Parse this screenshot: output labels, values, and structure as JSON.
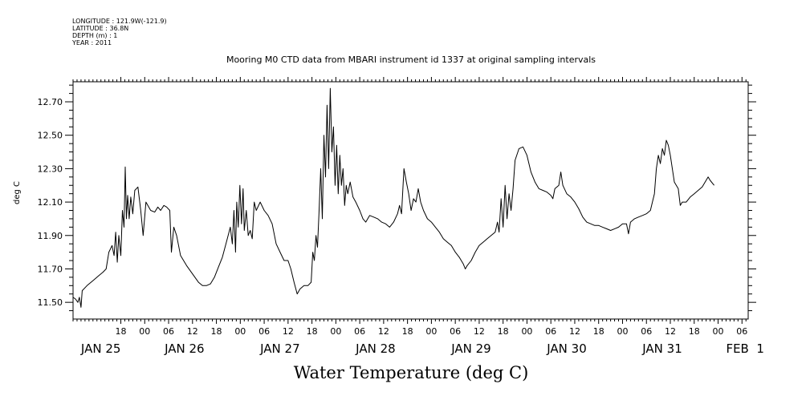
{
  "header": {
    "longitude": "LONGITUDE : 121.9W(-121.9)",
    "latitude": "LATITUDE : 36.8N",
    "depth": "DEPTH (m) : 1",
    "year": "YEAR : 2011"
  },
  "chart_data": {
    "type": "line",
    "title": "Mooring M0 CTD data from MBARI instrument id 1337 at original sampling intervals",
    "ylabel": "deg C",
    "xlabel": "Water Temperature (deg C)",
    "ylim": [
      11.4,
      12.82
    ],
    "xlim_hours": [
      0,
      166
    ],
    "y_ticks": [
      "11.50",
      "11.70",
      "11.90",
      "12.10",
      "12.30",
      "12.50",
      "12.70"
    ],
    "hour_ticks": [
      {
        "label": "18",
        "h": 12
      },
      {
        "label": "00",
        "h": 18
      },
      {
        "label": "06",
        "h": 24
      },
      {
        "label": "12",
        "h": 30
      },
      {
        "label": "18",
        "h": 36
      },
      {
        "label": "00",
        "h": 42
      },
      {
        "label": "06",
        "h": 48
      },
      {
        "label": "12",
        "h": 54
      },
      {
        "label": "18",
        "h": 60
      },
      {
        "label": "00",
        "h": 66
      },
      {
        "label": "06",
        "h": 72
      },
      {
        "label": "12",
        "h": 78
      },
      {
        "label": "18",
        "h": 84
      },
      {
        "label": "00",
        "h": 90
      },
      {
        "label": "06",
        "h": 96
      },
      {
        "label": "12",
        "h": 102
      },
      {
        "label": "18",
        "h": 108
      },
      {
        "label": "00",
        "h": 114
      },
      {
        "label": "06",
        "h": 120
      },
      {
        "label": "12",
        "h": 126
      },
      {
        "label": "18",
        "h": 132
      },
      {
        "label": "00",
        "h": 138
      },
      {
        "label": "06",
        "h": 144
      },
      {
        "label": "12",
        "h": 150
      },
      {
        "label": "18",
        "h": 156
      },
      {
        "label": "00",
        "h": 162
      },
      {
        "label": "06",
        "h": 168
      },
      {
        "label": "12",
        "h": 174
      }
    ],
    "date_labels": [
      {
        "label": "JAN 25",
        "h": 2
      },
      {
        "label": "JAN 26",
        "h": 23
      },
      {
        "label": "JAN 27",
        "h": 47
      },
      {
        "label": "JAN 28",
        "h": 71
      },
      {
        "label": "JAN 29",
        "h": 95
      },
      {
        "label": "JAN 30",
        "h": 119
      },
      {
        "label": "JAN 31",
        "h": 143
      },
      {
        "label": "FEB  1",
        "h": 164
      }
    ],
    "series": [
      {
        "color": "#000000",
        "points": [
          [
            0.0,
            11.53
          ],
          [
            0.6,
            11.52
          ],
          [
            1.2,
            11.5
          ],
          [
            1.6,
            11.53
          ],
          [
            2.0,
            11.47
          ],
          [
            2.3,
            11.57
          ],
          [
            3.5,
            11.6
          ],
          [
            5.0,
            11.63
          ],
          [
            6.5,
            11.66
          ],
          [
            7.5,
            11.68
          ],
          [
            8.3,
            11.7
          ],
          [
            9.0,
            11.8
          ],
          [
            9.8,
            11.84
          ],
          [
            10.3,
            11.78
          ],
          [
            10.7,
            11.92
          ],
          [
            11.1,
            11.74
          ],
          [
            11.5,
            11.9
          ],
          [
            12.0,
            11.78
          ],
          [
            12.4,
            12.05
          ],
          [
            12.8,
            11.95
          ],
          [
            13.1,
            12.31
          ],
          [
            13.4,
            12.0
          ],
          [
            13.7,
            12.14
          ],
          [
            14.1,
            12.0
          ],
          [
            14.5,
            12.13
          ],
          [
            15.0,
            12.03
          ],
          [
            15.5,
            12.17
          ],
          [
            16.3,
            12.19
          ],
          [
            17.0,
            12.05
          ],
          [
            17.6,
            11.9
          ],
          [
            18.3,
            12.1
          ],
          [
            19.5,
            12.05
          ],
          [
            20.5,
            12.04
          ],
          [
            21.3,
            12.07
          ],
          [
            22.0,
            12.05
          ],
          [
            22.8,
            12.08
          ],
          [
            23.5,
            12.07
          ],
          [
            24.3,
            12.05
          ],
          [
            24.7,
            11.8
          ],
          [
            25.3,
            11.95
          ],
          [
            26.0,
            11.9
          ],
          [
            27.0,
            11.78
          ],
          [
            28.5,
            11.72
          ],
          [
            30.0,
            11.67
          ],
          [
            31.5,
            11.62
          ],
          [
            32.5,
            11.6
          ],
          [
            33.5,
            11.6
          ],
          [
            34.5,
            11.61
          ],
          [
            35.5,
            11.65
          ],
          [
            36.5,
            11.71
          ],
          [
            37.5,
            11.77
          ],
          [
            38.5,
            11.86
          ],
          [
            39.5,
            11.95
          ],
          [
            40.0,
            11.85
          ],
          [
            40.4,
            12.05
          ],
          [
            40.8,
            11.8
          ],
          [
            41.1,
            12.1
          ],
          [
            41.5,
            11.95
          ],
          [
            41.9,
            12.2
          ],
          [
            42.3,
            11.97
          ],
          [
            42.7,
            12.18
          ],
          [
            43.0,
            11.93
          ],
          [
            43.5,
            12.05
          ],
          [
            44.0,
            11.9
          ],
          [
            44.5,
            11.93
          ],
          [
            45.0,
            11.88
          ],
          [
            45.5,
            12.1
          ],
          [
            46.0,
            12.05
          ],
          [
            47.0,
            12.1
          ],
          [
            48.0,
            12.05
          ],
          [
            49.0,
            12.02
          ],
          [
            50.0,
            11.97
          ],
          [
            51.0,
            11.85
          ],
          [
            52.0,
            11.8
          ],
          [
            53.0,
            11.75
          ],
          [
            54.0,
            11.75
          ],
          [
            54.7,
            11.7
          ],
          [
            55.5,
            11.62
          ],
          [
            56.3,
            11.55
          ],
          [
            57.0,
            11.58
          ],
          [
            58.0,
            11.6
          ],
          [
            59.0,
            11.6
          ],
          [
            59.8,
            11.62
          ],
          [
            60.2,
            11.8
          ],
          [
            60.6,
            11.75
          ],
          [
            61.0,
            11.9
          ],
          [
            61.4,
            11.83
          ],
          [
            61.8,
            12.05
          ],
          [
            62.2,
            12.3
          ],
          [
            62.6,
            12.0
          ],
          [
            63.0,
            12.5
          ],
          [
            63.4,
            12.25
          ],
          [
            63.8,
            12.68
          ],
          [
            64.2,
            12.3
          ],
          [
            64.6,
            12.78
          ],
          [
            65.0,
            12.4
          ],
          [
            65.4,
            12.55
          ],
          [
            65.8,
            12.2
          ],
          [
            66.2,
            12.44
          ],
          [
            66.6,
            12.15
          ],
          [
            67.0,
            12.38
          ],
          [
            67.4,
            12.2
          ],
          [
            67.8,
            12.3
          ],
          [
            68.2,
            12.08
          ],
          [
            68.6,
            12.2
          ],
          [
            69.0,
            12.15
          ],
          [
            69.6,
            12.22
          ],
          [
            70.3,
            12.13
          ],
          [
            71.0,
            12.1
          ],
          [
            72.0,
            12.05
          ],
          [
            72.8,
            12.0
          ],
          [
            73.5,
            11.98
          ],
          [
            74.5,
            12.02
          ],
          [
            75.5,
            12.01
          ],
          [
            76.5,
            12.0
          ],
          [
            77.5,
            11.98
          ],
          [
            78.5,
            11.97
          ],
          [
            79.5,
            11.95
          ],
          [
            80.5,
            11.98
          ],
          [
            81.5,
            12.03
          ],
          [
            82.0,
            12.08
          ],
          [
            82.5,
            12.03
          ],
          [
            83.1,
            12.3
          ],
          [
            83.7,
            12.22
          ],
          [
            84.3,
            12.15
          ],
          [
            84.9,
            12.05
          ],
          [
            85.5,
            12.12
          ],
          [
            86.1,
            12.1
          ],
          [
            86.7,
            12.18
          ],
          [
            87.3,
            12.1
          ],
          [
            88.0,
            12.05
          ],
          [
            89.0,
            12.0
          ],
          [
            90.0,
            11.98
          ],
          [
            91.0,
            11.95
          ],
          [
            92.0,
            11.92
          ],
          [
            93.0,
            11.88
          ],
          [
            94.0,
            11.86
          ],
          [
            95.0,
            11.84
          ],
          [
            96.0,
            11.8
          ],
          [
            97.0,
            11.77
          ],
          [
            98.0,
            11.73
          ],
          [
            98.5,
            11.7
          ],
          [
            99.0,
            11.72
          ],
          [
            100.0,
            11.75
          ],
          [
            101.0,
            11.8
          ],
          [
            102.0,
            11.84
          ],
          [
            103.0,
            11.86
          ],
          [
            104.0,
            11.88
          ],
          [
            105.0,
            11.9
          ],
          [
            106.0,
            11.92
          ],
          [
            106.6,
            11.98
          ],
          [
            107.0,
            11.92
          ],
          [
            107.5,
            12.12
          ],
          [
            108.0,
            11.95
          ],
          [
            108.5,
            12.2
          ],
          [
            109.0,
            12.0
          ],
          [
            109.5,
            12.15
          ],
          [
            110.0,
            12.05
          ],
          [
            110.5,
            12.18
          ],
          [
            111.0,
            12.35
          ],
          [
            112.0,
            12.42
          ],
          [
            113.0,
            12.43
          ],
          [
            114.0,
            12.38
          ],
          [
            115.0,
            12.28
          ],
          [
            116.0,
            12.22
          ],
          [
            117.0,
            12.18
          ],
          [
            118.0,
            12.17
          ],
          [
            119.0,
            12.16
          ],
          [
            120.0,
            12.14
          ],
          [
            120.5,
            12.12
          ],
          [
            121.0,
            12.18
          ],
          [
            122.0,
            12.2
          ],
          [
            122.5,
            12.28
          ],
          [
            123.0,
            12.2
          ],
          [
            124.0,
            12.15
          ],
          [
            125.0,
            12.13
          ],
          [
            126.0,
            12.1
          ],
          [
            127.0,
            12.06
          ],
          [
            128.0,
            12.01
          ],
          [
            129.0,
            11.98
          ],
          [
            130.0,
            11.97
          ],
          [
            131.0,
            11.96
          ],
          [
            132.0,
            11.96
          ],
          [
            133.0,
            11.95
          ],
          [
            134.0,
            11.94
          ],
          [
            135.0,
            11.93
          ],
          [
            136.0,
            11.94
          ],
          [
            137.0,
            11.95
          ],
          [
            138.0,
            11.97
          ],
          [
            139.0,
            11.97
          ],
          [
            139.5,
            11.91
          ],
          [
            140.0,
            11.98
          ],
          [
            141.0,
            12.0
          ],
          [
            142.0,
            12.01
          ],
          [
            143.0,
            12.02
          ],
          [
            144.0,
            12.03
          ],
          [
            145.0,
            12.05
          ],
          [
            146.0,
            12.15
          ],
          [
            146.5,
            12.3
          ],
          [
            147.0,
            12.38
          ],
          [
            147.5,
            12.33
          ],
          [
            148.0,
            12.42
          ],
          [
            148.5,
            12.38
          ],
          [
            149.0,
            12.47
          ],
          [
            149.5,
            12.44
          ],
          [
            150.0,
            12.38
          ],
          [
            150.5,
            12.3
          ],
          [
            151.0,
            12.22
          ],
          [
            152.0,
            12.18
          ],
          [
            152.5,
            12.08
          ],
          [
            153.0,
            12.1
          ],
          [
            154.0,
            12.1
          ],
          [
            155.0,
            12.13
          ],
          [
            156.0,
            12.15
          ],
          [
            157.0,
            12.17
          ],
          [
            158.0,
            12.19
          ],
          [
            159.0,
            12.23
          ],
          [
            159.5,
            12.25
          ],
          [
            160.0,
            12.23
          ],
          [
            161.0,
            12.2
          ]
        ]
      }
    ]
  }
}
